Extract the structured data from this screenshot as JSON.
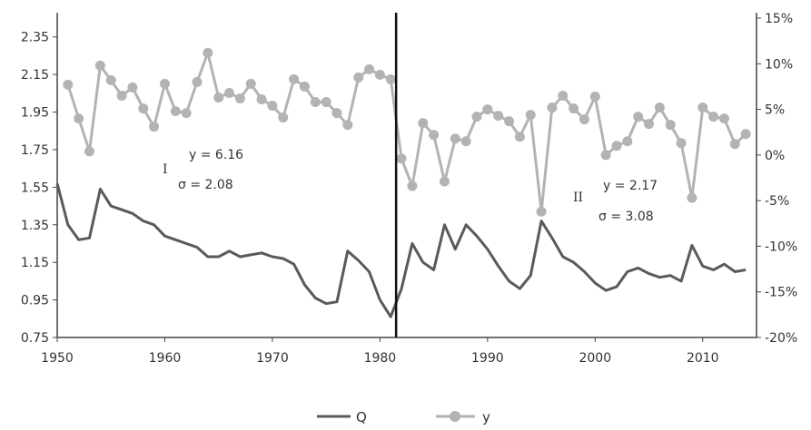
{
  "chart_data": {
    "type": "line",
    "title": "",
    "xlabel": "",
    "ylabel": "",
    "xlim": [
      1950,
      2015
    ],
    "x_ticks": [
      "1950",
      "1960",
      "1970",
      "1980",
      "1990",
      "2000",
      "2010"
    ],
    "y_left": {
      "lim": [
        0.75,
        2.45
      ],
      "ticks": [
        "0.75",
        "0.95",
        "1.15",
        "1.35",
        "1.55",
        "1.75",
        "1.95",
        "2.15",
        "2.35"
      ]
    },
    "y_right": {
      "lim": [
        -20,
        15
      ],
      "ticks": [
        "-20%",
        "-15%",
        "-10%",
        "-5%",
        "0%",
        "5%",
        "10%",
        "15%"
      ]
    },
    "grid": false,
    "legend_position": "bottom",
    "break_year": 1981.5,
    "series": [
      {
        "name": "Q",
        "axis": "left",
        "color": "#5a5a5a",
        "marker": "none",
        "x": [
          1950,
          1951,
          1952,
          1953,
          1954,
          1955,
          1956,
          1957,
          1958,
          1959,
          1960,
          1961,
          1962,
          1963,
          1964,
          1965,
          1966,
          1967,
          1968,
          1969,
          1970,
          1971,
          1972,
          1973,
          1974,
          1975,
          1976,
          1977,
          1978,
          1979,
          1980,
          1981,
          1982,
          1983,
          1984,
          1985,
          1986,
          1987,
          1988,
          1989,
          1990,
          1991,
          1992,
          1993,
          1994,
          1995,
          1996,
          1997,
          1998,
          1999,
          2000,
          2001,
          2002,
          2003,
          2004,
          2005,
          2006,
          2007,
          2008,
          2009,
          2010,
          2011,
          2012,
          2013,
          2014
        ],
        "values": [
          1.57,
          1.35,
          1.27,
          1.28,
          1.54,
          1.45,
          1.43,
          1.41,
          1.37,
          1.35,
          1.29,
          1.27,
          1.25,
          1.23,
          1.18,
          1.18,
          1.21,
          1.18,
          1.19,
          1.2,
          1.18,
          1.17,
          1.14,
          1.03,
          0.96,
          0.93,
          0.94,
          1.21,
          1.16,
          1.1,
          0.95,
          0.86,
          1.01,
          1.25,
          1.15,
          1.11,
          1.35,
          1.22,
          1.35,
          1.29,
          1.22,
          1.13,
          1.05,
          1.01,
          1.08,
          1.37,
          1.28,
          1.18,
          1.15,
          1.1,
          1.04,
          1.0,
          1.02,
          1.1,
          1.12,
          1.09,
          1.07,
          1.08,
          1.05,
          1.24,
          1.13,
          1.11,
          1.14,
          1.1,
          1.11
        ]
      },
      {
        "name": "y",
        "axis": "right",
        "color": "#b3b3b3",
        "marker": "circle",
        "x": [
          1951,
          1952,
          1953,
          1954,
          1955,
          1956,
          1957,
          1958,
          1959,
          1960,
          1961,
          1962,
          1963,
          1964,
          1965,
          1966,
          1967,
          1968,
          1969,
          1970,
          1971,
          1972,
          1973,
          1974,
          1975,
          1976,
          1977,
          1978,
          1979,
          1980,
          1981,
          1982,
          1983,
          1984,
          1985,
          1986,
          1987,
          1988,
          1989,
          1990,
          1991,
          1992,
          1993,
          1994,
          1995,
          1996,
          1997,
          1998,
          1999,
          2000,
          2001,
          2002,
          2003,
          2004,
          2005,
          2006,
          2007,
          2008,
          2009,
          2010,
          2011,
          2012,
          2013,
          2014
        ],
        "values": [
          7.7,
          4.0,
          0.4,
          9.8,
          8.2,
          6.5,
          7.4,
          5.1,
          3.1,
          7.8,
          4.8,
          4.6,
          8.0,
          11.2,
          6.3,
          6.8,
          6.2,
          7.8,
          6.1,
          5.4,
          4.1,
          8.3,
          7.5,
          5.8,
          5.8,
          4.6,
          3.3,
          8.5,
          9.4,
          8.8,
          8.3,
          -0.4,
          -3.4,
          3.5,
          2.2,
          -2.9,
          1.8,
          1.5,
          4.2,
          5.0,
          4.3,
          3.7,
          2.0,
          4.4,
          -6.2,
          5.2,
          6.5,
          5.1,
          3.9,
          6.4,
          0.0,
          1.0,
          1.5,
          4.2,
          3.4,
          5.2,
          3.3,
          1.3,
          -4.7,
          5.2,
          4.2,
          4.0,
          1.2,
          2.3
        ]
      }
    ],
    "annotations": [
      {
        "label": "I",
        "year": 1950
      },
      {
        "label": "y = 6.16"
      },
      {
        "label": "σ = 2.08"
      },
      {
        "label": "II",
        "year": 1995
      },
      {
        "label": "y = 2.17"
      },
      {
        "label": "σ = 3.08"
      }
    ]
  }
}
